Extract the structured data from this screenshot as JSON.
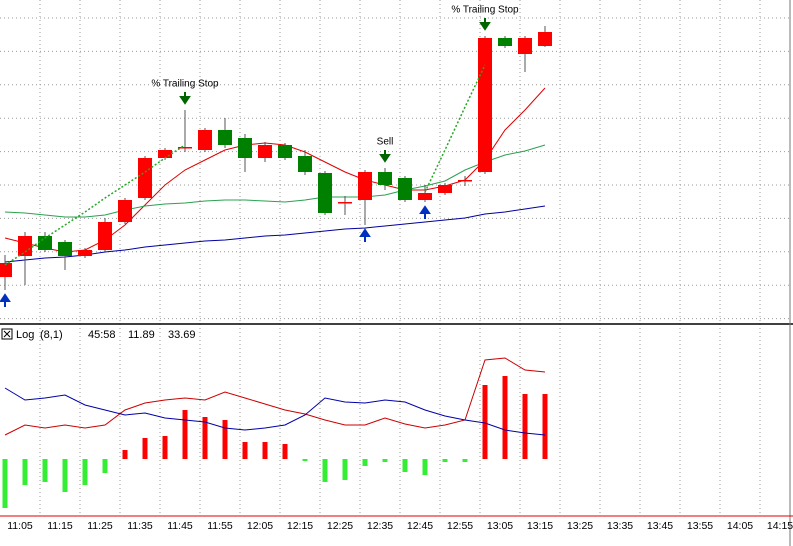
{
  "chart_data": {
    "type": "candlestick",
    "ylim": [
      0,
      325
    ],
    "candles": {
      "open": [
        48,
        69,
        89,
        83,
        69,
        75,
        103,
        127,
        167,
        177,
        175,
        195,
        187,
        167,
        180,
        169,
        152,
        122,
        125,
        153,
        147,
        125,
        132,
        144,
        153,
        287,
        271,
        279
      ],
      "high": [
        70,
        93,
        93,
        85,
        77,
        107,
        127,
        169,
        177,
        215,
        197,
        207,
        191,
        183,
        182,
        175,
        154,
        129,
        155,
        157,
        149,
        140,
        142,
        149,
        289,
        289,
        289,
        299
      ],
      "low": [
        35,
        40,
        73,
        55,
        67,
        73,
        101,
        125,
        165,
        173,
        173,
        177,
        153,
        163,
        165,
        150,
        110,
        110,
        100,
        135,
        123,
        123,
        130,
        139,
        151,
        277,
        253,
        278
      ],
      "close": [
        62,
        89,
        75,
        69,
        75,
        103,
        125,
        167,
        175,
        178,
        195,
        180,
        167,
        180,
        167,
        153,
        112,
        123,
        153,
        140,
        125,
        132,
        140,
        145,
        287,
        279,
        287,
        293
      ],
      "up_color": "#ff0000",
      "down_color": "#008000"
    },
    "lines": [
      {
        "color": "#e00000",
        "dash": false,
        "values": [
          87,
          82,
          77,
          73,
          75,
          85,
          100,
          120,
          140,
          155,
          165,
          175,
          180,
          182,
          180,
          173,
          163,
          153,
          145,
          140,
          135,
          135,
          139,
          145,
          165,
          195,
          215,
          237
        ]
      },
      {
        "color": "#2aa050",
        "dash": false,
        "values": [
          113,
          112,
          110,
          108,
          108,
          110,
          115,
          119,
          121,
          122,
          124,
          125,
          125,
          124,
          123,
          125,
          128,
          128,
          128,
          130,
          135,
          139,
          144,
          155,
          163,
          170,
          174,
          180
        ]
      },
      {
        "color": "#0000a0",
        "dash": false,
        "values": [
          63,
          65,
          67,
          68,
          70,
          73,
          75,
          78,
          80,
          82,
          84,
          85,
          87,
          89,
          90,
          92,
          94,
          96,
          97,
          99,
          101,
          103,
          105,
          107,
          111,
          113,
          116,
          119
        ]
      },
      {
        "color": "#22aa22",
        "dash": true,
        "values": [
          60,
          73,
          87,
          100,
          113,
          127,
          140,
          153,
          167,
          180,
          null,
          null,
          null,
          null,
          null,
          null,
          null,
          null,
          null,
          null,
          null,
          133,
          175,
          218,
          260,
          null,
          null,
          null
        ]
      }
    ],
    "annotations": [
      {
        "index": 9,
        "kind": "down",
        "label": "% Trailing Stop",
        "color": "#006400"
      },
      {
        "index": 19,
        "kind": "down",
        "label": "Sell",
        "color": "#006400"
      },
      {
        "index": 24,
        "kind": "down",
        "label": "% Trailing Stop",
        "color": "#006400"
      },
      {
        "index": 0,
        "kind": "up",
        "color": "#0030c0"
      },
      {
        "index": 18,
        "kind": "up",
        "color": "#0030c0"
      },
      {
        "index": 21,
        "kind": "up",
        "color": "#0030c0"
      }
    ],
    "indicator": {
      "name": "Log",
      "params": "(8,1)",
      "readouts": [
        {
          "text": "45:58",
          "color": "#cc0000"
        },
        {
          "text": "11.89",
          "color": "#0000aa"
        },
        {
          "text": "33.69",
          "color": "#cc0000"
        }
      ],
      "ylim": [
        -56,
        134
      ],
      "histogram": {
        "up_color": "#ff0000",
        "down_color": "#33ee33",
        "values": [
          -49,
          -26,
          -23,
          -33,
          -26,
          -14,
          9,
          21,
          23,
          49,
          42,
          39,
          17,
          17,
          15,
          -2,
          -23,
          -21,
          -7,
          -3,
          -13,
          -16,
          -3,
          -3,
          74,
          83,
          65,
          65
        ]
      },
      "lines": [
        {
          "color": "#cc0000",
          "values": [
            24,
            34,
            31,
            34,
            31,
            34,
            49,
            56,
            59,
            61,
            59,
            67,
            61,
            55,
            49,
            45,
            39,
            34,
            34,
            41,
            35,
            31,
            34,
            39,
            99,
            101,
            89,
            87
          ]
        },
        {
          "color": "#0000aa",
          "values": [
            71,
            59,
            61,
            64,
            54,
            49,
            44,
            46,
            41,
            39,
            37,
            31,
            29,
            31,
            34,
            44,
            61,
            57,
            56,
            59,
            57,
            49,
            43,
            39,
            36,
            29,
            26,
            24
          ]
        }
      ]
    },
    "xticks": [
      "11:05",
      "11:15",
      "11:25",
      "11:35",
      "11:45",
      "11:55",
      "12:05",
      "12:15",
      "12:25",
      "12:35",
      "12:45",
      "12:55",
      "13:05",
      "13:15",
      "13:25",
      "13:35",
      "13:45",
      "13:55",
      "14:05",
      "14:15"
    ]
  }
}
